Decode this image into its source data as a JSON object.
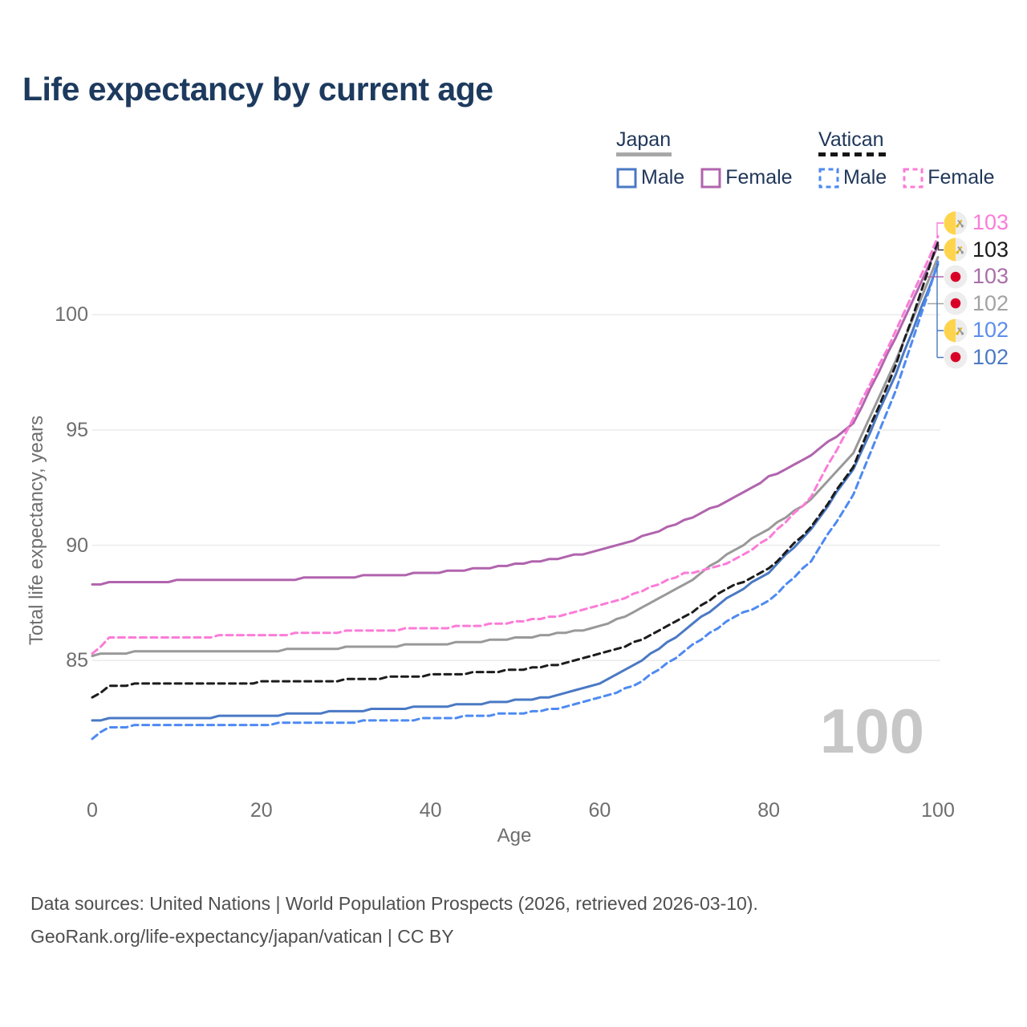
{
  "title": "Life expectancy by current age",
  "watermark": "100",
  "footer": {
    "line1": "Data sources: United Nations | World Population Prospects (2026, retrieved 2026-03-10).",
    "line2": "GeoRank.org/life-expectancy/japan/vatican | CC BY"
  },
  "legend": {
    "groups": [
      {
        "country": "Japan",
        "underline": "solid",
        "items": [
          {
            "label": "Male",
            "color": "#4a79c4",
            "dashed": false
          },
          {
            "label": "Female",
            "color": "#b164ad",
            "dashed": false
          }
        ]
      },
      {
        "country": "Vatican",
        "underline": "dashed",
        "items": [
          {
            "label": "Male",
            "color": "#4e8af2",
            "dashed": true
          },
          {
            "label": "Female",
            "color": "#fb7cd8",
            "dashed": true
          }
        ]
      }
    ]
  },
  "chart_data": {
    "type": "line",
    "title": "Life expectancy by current age",
    "xlabel": "Age",
    "ylabel": "Total life expectancy, years",
    "x_ticks": [
      0,
      20,
      40,
      60,
      80,
      100
    ],
    "y_ticks": [
      85,
      90,
      95,
      100
    ],
    "xlim": [
      0,
      100
    ],
    "ylim": [
      81,
      104
    ],
    "grid": "horizontal",
    "legend_position": "top-right",
    "x": [
      0,
      2,
      5,
      10,
      15,
      20,
      25,
      30,
      35,
      40,
      45,
      50,
      55,
      60,
      65,
      70,
      75,
      80,
      85,
      90,
      95,
      100
    ],
    "series": [
      {
        "name": "Japan Total",
        "color": "#999999",
        "label_color": "#a3a3a3",
        "dashed": false,
        "flag": "japan",
        "end_label": "102",
        "values": [
          85.2,
          85.32,
          85.35,
          85.37,
          85.4,
          85.42,
          85.48,
          85.55,
          85.62,
          85.7,
          85.8,
          85.95,
          86.15,
          86.45,
          87.25,
          88.25,
          89.6,
          90.7,
          92.0,
          94.0,
          98.0,
          102.5
        ]
      },
      {
        "name": "Japan Female",
        "color": "#b164ad",
        "label_color": "#a96fa9",
        "dashed": false,
        "flag": "japan",
        "end_label": "103",
        "values": [
          88.25,
          88.38,
          88.42,
          88.45,
          88.47,
          88.5,
          88.55,
          88.62,
          88.7,
          88.8,
          88.95,
          89.15,
          89.42,
          89.8,
          90.35,
          91.05,
          91.9,
          92.95,
          93.9,
          95.3,
          99.0,
          102.95
        ]
      },
      {
        "name": "Japan Male",
        "color": "#4a79c4",
        "label_color": "#4a79c4",
        "dashed": false,
        "flag": "japan",
        "end_label": "102",
        "values": [
          82.35,
          82.48,
          82.5,
          82.52,
          82.55,
          82.6,
          82.7,
          82.8,
          82.9,
          83.0,
          83.1,
          83.25,
          83.45,
          84.0,
          85.0,
          86.3,
          87.7,
          88.8,
          90.7,
          93.3,
          97.4,
          102.15
        ]
      },
      {
        "name": "Vatican Total",
        "color": "#1c1c1c",
        "label_color": "#1a1a1a",
        "dashed": true,
        "flag": "vatican",
        "end_label": "103",
        "values": [
          83.35,
          83.9,
          83.95,
          83.98,
          84.0,
          84.05,
          84.1,
          84.15,
          84.25,
          84.35,
          84.45,
          84.6,
          84.8,
          85.25,
          85.9,
          86.9,
          88.1,
          88.95,
          90.8,
          93.4,
          97.8,
          103.15
        ]
      },
      {
        "name": "Vatican Male",
        "color": "#4e8af2",
        "label_color": "#5b8def",
        "dashed": true,
        "flag": "vatican",
        "end_label": "102",
        "values": [
          81.6,
          82.1,
          82.15,
          82.17,
          82.2,
          82.23,
          82.28,
          82.33,
          82.4,
          82.48,
          82.58,
          82.7,
          82.9,
          83.35,
          84.1,
          85.4,
          86.7,
          87.6,
          89.3,
          92.2,
          96.7,
          102.25
        ]
      },
      {
        "name": "Vatican Female",
        "color": "#fb7cd8",
        "label_color": "#fb7cd8",
        "dashed": true,
        "flag": "vatican",
        "end_label": "103",
        "values": [
          85.3,
          85.95,
          86.0,
          86.03,
          86.05,
          86.1,
          86.18,
          86.25,
          86.32,
          86.4,
          86.5,
          86.65,
          86.9,
          87.35,
          88.0,
          88.75,
          89.15,
          90.3,
          92.1,
          95.5,
          99.3,
          103.35
        ]
      }
    ],
    "end_label_order": [
      "Vatican Female",
      "Vatican Total",
      "Japan Female",
      "Japan Total",
      "Vatican Male",
      "Japan Male"
    ]
  }
}
